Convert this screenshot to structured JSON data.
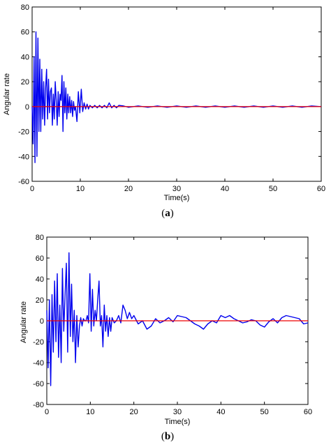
{
  "chart_data": [
    {
      "type": "line",
      "caption_letter": "a",
      "xlabel": "Time(s)",
      "ylabel": "Angular rate",
      "xlim": [
        0,
        60
      ],
      "ylim": [
        -60,
        80
      ],
      "xticks": [
        "0",
        "10",
        "20",
        "30",
        "40",
        "50",
        "60"
      ],
      "yticks": [
        "-60",
        "-40",
        "-20",
        "0",
        "20",
        "40",
        "60",
        "80"
      ],
      "colors": {
        "signal": "#0000ee",
        "reference": "#ee0000"
      },
      "series": [
        {
          "role": "signal",
          "x": [
            0,
            0.2,
            0.4,
            0.6,
            0.8,
            1.0,
            1.2,
            1.4,
            1.6,
            1.8,
            2.0,
            2.2,
            2.4,
            2.6,
            2.8,
            3.0,
            3.2,
            3.4,
            3.6,
            3.8,
            4.0,
            4.2,
            4.4,
            4.6,
            4.8,
            5.0,
            5.2,
            5.4,
            5.6,
            5.8,
            6.0,
            6.2,
            6.4,
            6.6,
            6.8,
            7.0,
            7.2,
            7.4,
            7.6,
            7.8,
            8.0,
            8.2,
            8.4,
            8.6,
            8.8,
            9.0,
            9.3,
            9.6,
            9.9,
            10.2,
            10.5,
            10.8,
            11.1,
            11.4,
            11.7,
            12.0,
            12.5,
            13.0,
            13.5,
            14.0,
            14.5,
            15.0,
            15.5,
            16.0,
            16.5,
            17.0,
            17.5,
            18.0,
            19.0,
            20.0,
            22.0,
            24.0,
            26.0,
            28.0,
            30.0,
            32.0,
            34.0,
            36.0,
            38.0,
            40.0,
            42.0,
            44.0,
            46.0,
            48.0,
            50.0,
            52.0,
            54.0,
            56.0,
            58.0,
            60.0
          ],
          "y": [
            0,
            -30,
            40,
            -45,
            60,
            -40,
            55,
            -20,
            38,
            -20,
            30,
            -10,
            20,
            -15,
            15,
            30,
            -10,
            22,
            -5,
            12,
            15,
            -15,
            10,
            -10,
            20,
            5,
            -15,
            12,
            -8,
            10,
            5,
            25,
            -20,
            20,
            -5,
            15,
            -10,
            10,
            -5,
            8,
            -5,
            5,
            -8,
            4,
            -3,
            0,
            -12,
            12,
            -5,
            14,
            -4,
            3,
            -2,
            2,
            -2,
            1,
            -1,
            1,
            -1,
            1,
            -1,
            1,
            -1,
            3,
            -1,
            1,
            -1,
            1,
            0.5,
            -0.5,
            0.5,
            -0.5,
            0.5,
            -0.5,
            0.5,
            -0.5,
            0.5,
            -0.5,
            0.5,
            -0.5,
            0.5,
            -0.5,
            0.5,
            -0.5,
            0.5,
            -0.5,
            0.5,
            -0.5,
            0.5,
            0
          ]
        },
        {
          "role": "reference",
          "x": [
            0,
            60
          ],
          "y": [
            0,
            0
          ]
        }
      ]
    },
    {
      "type": "line",
      "caption_letter": "b",
      "xlabel": "Time(s)",
      "ylabel": "Angular rate",
      "xlim": [
        0,
        60
      ],
      "ylim": [
        -80,
        80
      ],
      "xticks": [
        "0",
        "10",
        "20",
        "30",
        "40",
        "50",
        "60"
      ],
      "yticks": [
        "-80",
        "-60",
        "-40",
        "-20",
        "0",
        "20",
        "40",
        "60",
        "80"
      ],
      "colors": {
        "signal": "#0000ee",
        "reference": "#ee0000"
      },
      "series": [
        {
          "role": "signal",
          "x": [
            0,
            0.3,
            0.6,
            0.9,
            1.2,
            1.5,
            1.8,
            2.1,
            2.4,
            2.7,
            3.0,
            3.3,
            3.6,
            3.9,
            4.2,
            4.5,
            4.8,
            5.1,
            5.4,
            5.7,
            6.0,
            6.3,
            6.6,
            6.9,
            7.2,
            7.5,
            7.8,
            8.1,
            8.4,
            8.7,
            9.0,
            9.3,
            9.6,
            9.9,
            10.2,
            10.5,
            10.8,
            11.1,
            11.4,
            11.7,
            12.0,
            12.3,
            12.6,
            12.9,
            13.2,
            13.5,
            13.8,
            14.1,
            14.4,
            14.7,
            15.0,
            15.5,
            16.0,
            16.5,
            17.0,
            17.5,
            18.0,
            18.5,
            19.0,
            19.5,
            20.0,
            21.0,
            22.0,
            23.0,
            24.0,
            25.0,
            26.0,
            27.0,
            28.0,
            29.0,
            30.0,
            31.0,
            32.0,
            33.0,
            34.0,
            35.0,
            36.0,
            37.0,
            38.0,
            39.0,
            40.0,
            41.0,
            42.0,
            43.0,
            44.0,
            45.0,
            46.0,
            47.0,
            48.0,
            49.0,
            50.0,
            51.0,
            52.0,
            53.0,
            54.0,
            55.0,
            56.0,
            57.0,
            58.0,
            59.0,
            60.0
          ],
          "y": [
            10,
            -45,
            20,
            -62,
            25,
            -30,
            38,
            -20,
            45,
            -35,
            15,
            -40,
            50,
            -10,
            25,
            55,
            -30,
            65,
            -15,
            35,
            -20,
            10,
            -40,
            5,
            -25,
            -5,
            3,
            -5,
            2,
            0,
            0,
            5,
            -2,
            45,
            -10,
            30,
            -5,
            10,
            0,
            20,
            38,
            -5,
            5,
            -25,
            15,
            -10,
            5,
            -15,
            3,
            -10,
            3,
            -2,
            0,
            5,
            -2,
            15,
            10,
            2,
            8,
            2,
            5,
            -3,
            0,
            -8,
            -5,
            2,
            -2,
            0,
            3,
            -1,
            5,
            4,
            3,
            0,
            -3,
            -5,
            -8,
            -3,
            0,
            -2,
            5,
            3,
            5,
            2,
            0,
            -2,
            -1,
            1,
            0,
            -4,
            -6,
            -1,
            2,
            -2,
            3,
            5,
            4,
            3,
            2,
            -3,
            -2
          ]
        },
        {
          "role": "reference",
          "x": [
            0,
            60
          ],
          "y": [
            0,
            0
          ]
        }
      ]
    }
  ]
}
